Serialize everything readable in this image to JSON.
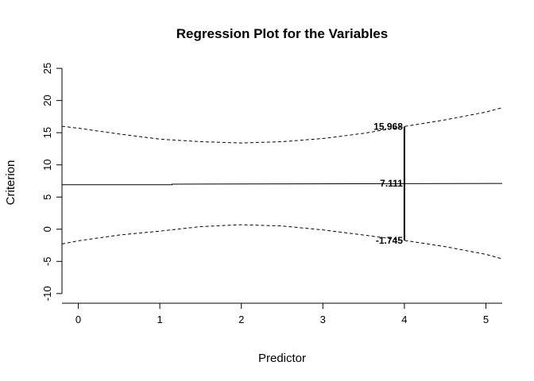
{
  "chart_data": {
    "type": "line",
    "title": "Regression Plot for the Variables",
    "xlabel": "Predictor",
    "ylabel": "Criterion",
    "xlim": [
      -0.2,
      5.2
    ],
    "ylim": [
      -11.5,
      26
    ],
    "xticks": [
      0,
      1,
      2,
      3,
      4,
      5
    ],
    "yticks": [
      -10,
      -5,
      0,
      5,
      10,
      15,
      20,
      25
    ],
    "grid": false,
    "series": [
      {
        "role": "fit",
        "style": "solid",
        "x": [
          -0.2,
          1.15,
          1.15,
          5.2
        ],
        "y": [
          6.9,
          6.9,
          7.0,
          7.111
        ]
      },
      {
        "role": "upper-band",
        "style": "dashed",
        "x": [
          -0.2,
          0,
          0.5,
          1,
          1.5,
          2,
          2.5,
          3,
          3.5,
          4,
          4.5,
          5,
          5.2
        ],
        "y": [
          16.0,
          15.7,
          14.8,
          14.0,
          13.6,
          13.4,
          13.6,
          14.1,
          14.9,
          15.968,
          17.0,
          18.2,
          18.9
        ]
      },
      {
        "role": "lower-band",
        "style": "dashed",
        "x": [
          -0.2,
          0,
          0.5,
          1,
          1.5,
          2,
          2.5,
          3,
          3.5,
          4,
          4.5,
          5,
          5.2
        ],
        "y": [
          -2.3,
          -1.8,
          -0.9,
          -0.3,
          0.4,
          0.7,
          0.5,
          -0.1,
          -0.9,
          -1.745,
          -2.7,
          -3.9,
          -4.6
        ]
      }
    ],
    "interval": {
      "x": 4,
      "upper": 15.968,
      "mid": 7.111,
      "lower": -1.745
    },
    "annotations": [
      "15.968",
      "7.111",
      "-1.745"
    ]
  }
}
